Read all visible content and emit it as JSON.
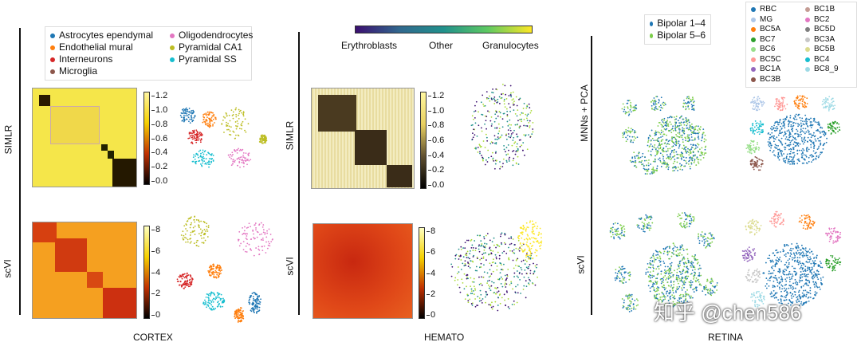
{
  "cortex": {
    "label": "CORTEX",
    "legend": [
      {
        "name": "Astrocytes ependymal",
        "color": "#1f77b4"
      },
      {
        "name": "Endothelial mural",
        "color": "#ff7f0e"
      },
      {
        "name": "Interneurons",
        "color": "#d62728"
      },
      {
        "name": "Microglia",
        "color": "#8c564b"
      },
      {
        "name": "Oligodendrocytes",
        "color": "#e377c2"
      },
      {
        "name": "Pyramidal CA1",
        "color": "#bcbd22"
      },
      {
        "name": "Pyramidal SS",
        "color": "#17becf"
      }
    ],
    "row_labels": [
      "SIMLR",
      "scVI"
    ],
    "simlr_ticks": [
      "1.2",
      "1.0",
      "0.8",
      "0.6",
      "0.4",
      "0.2",
      "0.0"
    ],
    "scvi_ticks": [
      "8",
      "6",
      "4",
      "2",
      "0"
    ]
  },
  "hemato": {
    "label": "HEMATO",
    "colorbar_labels": [
      "Erythroblasts",
      "Other",
      "Granulocytes"
    ],
    "row_labels": [
      "SIMLR",
      "scVI"
    ],
    "simlr_ticks": [
      "1.2",
      "1.0",
      "0.8",
      "0.6",
      "0.4",
      "0.2",
      "0.0"
    ],
    "scvi_ticks": [
      "8",
      "6",
      "4",
      "2",
      "0"
    ]
  },
  "retina": {
    "label": "RETINA",
    "row_labels": [
      "MNNs + PCA",
      "scVI"
    ],
    "batch_legend": [
      {
        "name": "Bipolar 1–4",
        "color": "#1f77b4"
      },
      {
        "name": "Bipolar 5–6",
        "color": "#7ccd4a"
      }
    ],
    "cell_legend": [
      {
        "name": "RBC",
        "color": "#1f77b4"
      },
      {
        "name": "BC1B",
        "color": "#c49c94"
      },
      {
        "name": "MG",
        "color": "#aec7e8"
      },
      {
        "name": "BC2",
        "color": "#e377c2"
      },
      {
        "name": "BC5A",
        "color": "#ff7f0e"
      },
      {
        "name": "BC5D",
        "color": "#7f7f7f"
      },
      {
        "name": "BC7",
        "color": "#2ca02c"
      },
      {
        "name": "BC3A",
        "color": "#c7c7c7"
      },
      {
        "name": "BC6",
        "color": "#98df8a"
      },
      {
        "name": "BC5B",
        "color": "#dbdb8d"
      },
      {
        "name": "BC5C",
        "color": "#ff9896"
      },
      {
        "name": "BC4",
        "color": "#17becf"
      },
      {
        "name": "BC1A",
        "color": "#9467bd"
      },
      {
        "name": "BC8_9",
        "color": "#9edae5"
      },
      {
        "name": "BC3B",
        "color": "#8c564b"
      }
    ]
  },
  "watermark": "知乎 @chen586",
  "chart_data": [
    {
      "type": "heatmap",
      "title": "",
      "row": "SIMLR",
      "dataset": "CORTEX",
      "colorscale": "hot-yellow",
      "clim": [
        0,
        1.3
      ]
    },
    {
      "type": "heatmap",
      "row": "scVI",
      "dataset": "CORTEX",
      "colorscale": "hot",
      "clim": [
        0,
        9
      ]
    },
    {
      "type": "heatmap",
      "row": "SIMLR",
      "dataset": "HEMATO",
      "colorscale": "black-yellow",
      "clim": [
        0,
        1.3
      ]
    },
    {
      "type": "heatmap",
      "row": "scVI",
      "dataset": "HEMATO",
      "colorscale": "hot",
      "clim": [
        0,
        9
      ]
    },
    {
      "type": "scatter",
      "dataset": "CORTEX",
      "rows": [
        "SIMLR",
        "scVI"
      ]
    },
    {
      "type": "scatter",
      "dataset": "HEMATO",
      "rows": [
        "SIMLR",
        "scVI"
      ],
      "colorscale": [
        "#3b0f70",
        "#21918c",
        "#fde725"
      ]
    },
    {
      "type": "scatter",
      "dataset": "RETINA",
      "rows": [
        "MNNs + PCA",
        "scVI"
      ],
      "color_by": [
        "batch",
        "cell type"
      ]
    }
  ]
}
